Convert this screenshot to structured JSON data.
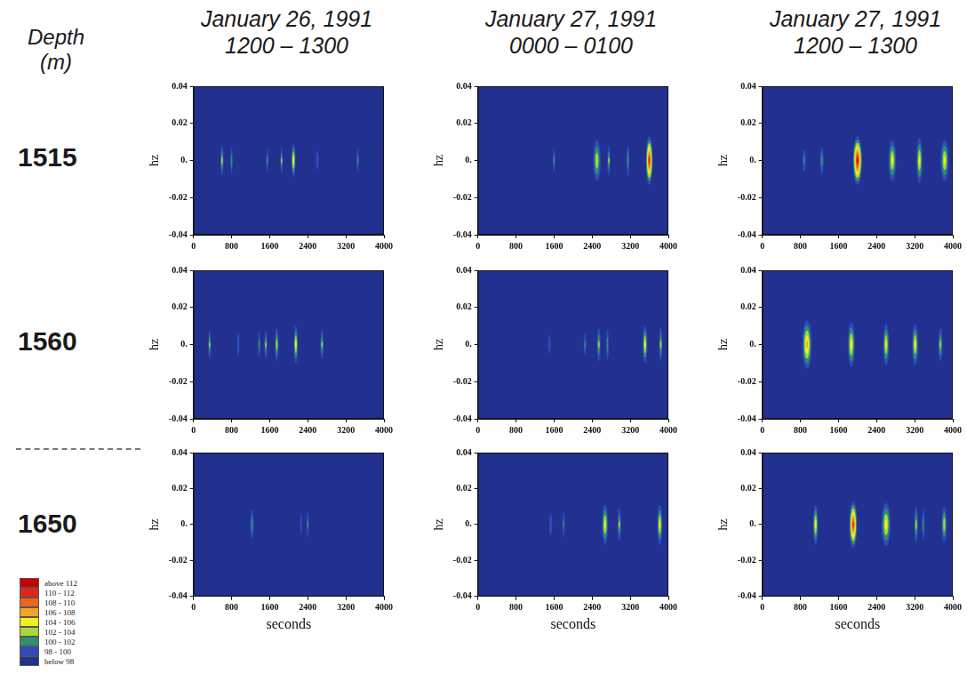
{
  "header": {
    "label": "Depth (m)"
  },
  "columns": [
    {
      "title": "January 26, 1991",
      "subtitle": "1200 – 1300"
    },
    {
      "title": "January 27, 1991",
      "subtitle": "0000 – 0100"
    },
    {
      "title": "January 27, 1991",
      "subtitle": "1200 – 1300"
    }
  ],
  "rows": [
    "1515",
    "1560",
    "1650"
  ],
  "color_bar": {
    "ticks": [
      98,
      100,
      102,
      104,
      106,
      108,
      110,
      112
    ],
    "bins": [
      {
        "label": "above 112",
        "color": "#c80000"
      },
      {
        "label": "110 - 112",
        "color": "#e52419"
      },
      {
        "label": "108 - 110",
        "color": "#f0641e"
      },
      {
        "label": "106 - 108",
        "color": "#f5a32a"
      },
      {
        "label": "104 - 106",
        "color": "#f2ee24"
      },
      {
        "label": "102 - 104",
        "color": "#a8d83a"
      },
      {
        "label": "100 - 102",
        "color": "#2f8f6c"
      },
      {
        "label": "98 - 100",
        "color": "#2d4bbf"
      },
      {
        "label": "below 98",
        "color": "#22308f"
      }
    ]
  },
  "chart_data": [
    {
      "type": "heatmap",
      "y_label": "hz",
      "grid": false,
      "xlim": [
        0,
        4000
      ],
      "xticks": [
        0,
        800,
        1600,
        2400,
        3200,
        4000
      ],
      "ylim": [
        -0.04,
        0.04
      ],
      "yticks": [
        -0.04,
        -0.02,
        {
          "value": 0,
          "label": "0."
        },
        0.02,
        0.04
      ],
      "events": [
        {
          "t": 600,
          "dt": 70,
          "df": 0.008,
          "level": 102.5
        },
        {
          "t": 800,
          "dt": 50,
          "df": 0.007,
          "level": 101
        },
        {
          "t": 1550,
          "dt": 50,
          "df": 0.006,
          "level": 101
        },
        {
          "t": 1850,
          "dt": 50,
          "df": 0.007,
          "level": 102
        },
        {
          "t": 2100,
          "dt": 90,
          "df": 0.009,
          "level": 105
        },
        {
          "t": 2600,
          "dt": 60,
          "df": 0.005,
          "level": 99
        },
        {
          "t": 3450,
          "dt": 50,
          "df": 0.006,
          "level": 101
        }
      ]
    },
    {
      "type": "heatmap",
      "y_label": "hz",
      "grid": false,
      "xlim": [
        0,
        4000
      ],
      "xticks": [
        0,
        800,
        1600,
        2400,
        3200,
        4000
      ],
      "ylim": [
        -0.04,
        0.04
      ],
      "yticks": [
        -0.04,
        -0.02,
        {
          "value": 0,
          "label": "0."
        },
        0.02,
        0.04
      ],
      "events": [
        {
          "t": 1600,
          "dt": 50,
          "df": 0.006,
          "level": 101
        },
        {
          "t": 2500,
          "dt": 160,
          "df": 0.011,
          "level": 103.5
        },
        {
          "t": 2750,
          "dt": 60,
          "df": 0.008,
          "level": 102
        },
        {
          "t": 3150,
          "dt": 60,
          "df": 0.008,
          "level": 101.5
        },
        {
          "t": 3600,
          "dt": 150,
          "df": 0.013,
          "level": 111
        }
      ]
    },
    {
      "type": "heatmap",
      "y_label": "hz",
      "grid": false,
      "xlim": [
        0,
        4000
      ],
      "xticks": [
        0,
        800,
        1600,
        2400,
        3200,
        4000
      ],
      "ylim": [
        -0.04,
        0.04
      ],
      "yticks": [
        -0.04,
        -0.02,
        {
          "value": 0,
          "label": "0."
        },
        0.02,
        0.04
      ],
      "events": [
        {
          "t": 880,
          "dt": 70,
          "df": 0.006,
          "level": 100
        },
        {
          "t": 1250,
          "dt": 80,
          "df": 0.007,
          "level": 101
        },
        {
          "t": 2000,
          "dt": 200,
          "df": 0.013,
          "level": 112
        },
        {
          "t": 2730,
          "dt": 160,
          "df": 0.011,
          "level": 104.5
        },
        {
          "t": 3300,
          "dt": 130,
          "df": 0.012,
          "level": 104.5
        },
        {
          "t": 3830,
          "dt": 170,
          "df": 0.011,
          "level": 104.5
        }
      ]
    },
    {
      "type": "heatmap",
      "y_label": "hz",
      "grid": false,
      "xlim": [
        0,
        4000
      ],
      "xticks": [
        0,
        800,
        1600,
        2400,
        3200,
        4000
      ],
      "ylim": [
        -0.04,
        0.04
      ],
      "yticks": [
        -0.04,
        -0.02,
        {
          "value": 0,
          "label": "0."
        },
        0.02,
        0.04
      ],
      "events": [
        {
          "t": 340,
          "dt": 60,
          "df": 0.008,
          "level": 102
        },
        {
          "t": 940,
          "dt": 50,
          "df": 0.006,
          "level": 99
        },
        {
          "t": 1380,
          "dt": 50,
          "df": 0.007,
          "level": 101
        },
        {
          "t": 1520,
          "dt": 60,
          "df": 0.008,
          "level": 102
        },
        {
          "t": 1750,
          "dt": 80,
          "df": 0.009,
          "level": 103
        },
        {
          "t": 2150,
          "dt": 90,
          "df": 0.01,
          "level": 104.5
        },
        {
          "t": 2700,
          "dt": 70,
          "df": 0.008,
          "level": 102
        }
      ]
    },
    {
      "type": "heatmap",
      "y_label": "hz",
      "grid": false,
      "xlim": [
        0,
        4000
      ],
      "xticks": [
        0,
        800,
        1600,
        2400,
        3200,
        4000
      ],
      "ylim": [
        -0.04,
        0.04
      ],
      "yticks": [
        -0.04,
        -0.02,
        {
          "value": 0,
          "label": "0."
        },
        0.02,
        0.04
      ],
      "events": [
        {
          "t": 1500,
          "dt": 50,
          "df": 0.005,
          "level": 99
        },
        {
          "t": 2250,
          "dt": 50,
          "df": 0.006,
          "level": 100
        },
        {
          "t": 2540,
          "dt": 80,
          "df": 0.009,
          "level": 102
        },
        {
          "t": 2720,
          "dt": 60,
          "df": 0.008,
          "level": 101
        },
        {
          "t": 3510,
          "dt": 100,
          "df": 0.01,
          "level": 104.5
        },
        {
          "t": 3840,
          "dt": 70,
          "df": 0.009,
          "level": 102.5
        }
      ]
    },
    {
      "type": "heatmap",
      "y_label": "hz",
      "grid": false,
      "xlim": [
        0,
        4000
      ],
      "xticks": [
        0,
        800,
        1600,
        2400,
        3200,
        4000
      ],
      "ylim": [
        -0.04,
        0.04
      ],
      "yticks": [
        -0.04,
        -0.02,
        {
          "value": 0,
          "label": "0."
        },
        0.02,
        0.04
      ],
      "events": [
        {
          "t": 940,
          "dt": 200,
          "df": 0.013,
          "level": 106.5
        },
        {
          "t": 1870,
          "dt": 150,
          "df": 0.012,
          "level": 105
        },
        {
          "t": 2600,
          "dt": 130,
          "df": 0.011,
          "level": 104.5
        },
        {
          "t": 3210,
          "dt": 130,
          "df": 0.011,
          "level": 104.5
        },
        {
          "t": 3740,
          "dt": 90,
          "df": 0.009,
          "level": 102.5
        }
      ]
    },
    {
      "type": "heatmap",
      "y_label": "hz",
      "x_label": "seconds",
      "grid": false,
      "xlim": [
        0,
        4000
      ],
      "xticks": [
        0,
        800,
        1600,
        2400,
        3200,
        4000
      ],
      "ylim": [
        -0.04,
        0.04
      ],
      "yticks": [
        -0.04,
        -0.02,
        {
          "value": 0,
          "label": "0."
        },
        0.02,
        0.04
      ],
      "events": [
        {
          "t": 1230,
          "dt": 80,
          "df": 0.008,
          "level": 101
        },
        {
          "t": 2260,
          "dt": 40,
          "df": 0.006,
          "level": 99
        },
        {
          "t": 2400,
          "dt": 50,
          "df": 0.007,
          "level": 100
        }
      ]
    },
    {
      "type": "heatmap",
      "y_label": "hz",
      "x_label": "seconds",
      "grid": false,
      "xlim": [
        0,
        4000
      ],
      "xticks": [
        0,
        800,
        1600,
        2400,
        3200,
        4000
      ],
      "ylim": [
        -0.04,
        0.04
      ],
      "yticks": [
        -0.04,
        -0.02,
        {
          "value": 0,
          "label": "0."
        },
        0.02,
        0.04
      ],
      "events": [
        {
          "t": 1530,
          "dt": 60,
          "df": 0.006,
          "level": 99
        },
        {
          "t": 1800,
          "dt": 50,
          "df": 0.007,
          "level": 100
        },
        {
          "t": 2670,
          "dt": 130,
          "df": 0.011,
          "level": 104.5
        },
        {
          "t": 2970,
          "dt": 80,
          "df": 0.009,
          "level": 102
        },
        {
          "t": 3820,
          "dt": 110,
          "df": 0.011,
          "level": 104.5
        }
      ]
    },
    {
      "type": "heatmap",
      "y_label": "hz",
      "x_label": "seconds",
      "grid": false,
      "xlim": [
        0,
        4000
      ],
      "xticks": [
        0,
        800,
        1600,
        2400,
        3200,
        4000
      ],
      "ylim": [
        -0.04,
        0.04
      ],
      "yticks": [
        -0.04,
        -0.02,
        {
          "value": 0,
          "label": "0."
        },
        0.02,
        0.04
      ],
      "events": [
        {
          "t": 1120,
          "dt": 110,
          "df": 0.011,
          "level": 104.5
        },
        {
          "t": 1910,
          "dt": 170,
          "df": 0.013,
          "level": 110.5
        },
        {
          "t": 2600,
          "dt": 190,
          "df": 0.012,
          "level": 105
        },
        {
          "t": 3230,
          "dt": 80,
          "df": 0.01,
          "level": 102.5
        },
        {
          "t": 3380,
          "dt": 60,
          "df": 0.008,
          "level": 101
        },
        {
          "t": 3820,
          "dt": 110,
          "df": 0.01,
          "level": 103.5
        }
      ]
    }
  ]
}
